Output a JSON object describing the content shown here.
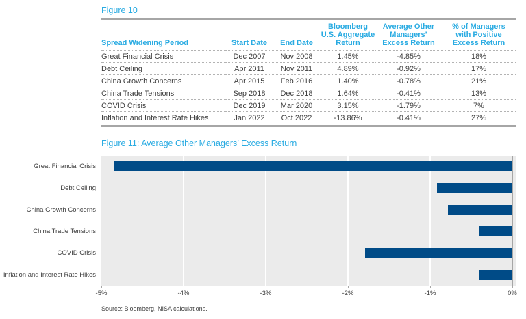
{
  "colors": {
    "accent_cyan": "#29ABE2",
    "bar_navy": "#004B87",
    "plot_background": "#EBEBEB",
    "body_text": "#404040",
    "rule_gray": "#A6A6A6"
  },
  "chart_data": [
    {
      "type": "table",
      "title": "Figure 10",
      "columns": [
        "Spread Widening Period",
        "Start Date",
        "End Date",
        "Bloomberg\nU.S. Aggregate\nReturn",
        "Average Other\nManagers’\nExcess Return",
        "% of Managers\nwith Positive\nExcess Return"
      ],
      "rows": [
        [
          "Great Financial Crisis",
          "Dec 2007",
          "Nov 2008",
          "1.45%",
          "-4.85%",
          "18%"
        ],
        [
          "Debt Ceiling",
          "Apr 2011",
          "Nov 2011",
          "4.89%",
          "-0.92%",
          "17%"
        ],
        [
          "China Growth Concerns",
          "Apr 2015",
          "Feb 2016",
          "1.40%",
          "-0.78%",
          "21%"
        ],
        [
          "China Trade Tensions",
          "Sep 2018",
          "Dec 2018",
          "1.64%",
          "-0.41%",
          "13%"
        ],
        [
          "COVID Crisis",
          "Dec 2019",
          "Mar 2020",
          "3.15%",
          "-1.79%",
          "7%"
        ],
        [
          "Inflation and Interest Rate Hikes",
          "Jan 2022",
          "Oct 2022",
          "-13.86%",
          "-0.41%",
          "27%"
        ]
      ]
    },
    {
      "type": "bar",
      "orientation": "horizontal",
      "title": "Figure 11: Average Other Managers’ Excess Return",
      "categories": [
        "Great Financial Crisis",
        "Debt Ceiling",
        "China Growth Concerns",
        "China Trade Tensions",
        "COVID Crisis",
        "Inflation and Interest Rate Hikes"
      ],
      "values": [
        -4.85,
        -0.92,
        -0.78,
        -0.41,
        -1.79,
        -0.41
      ],
      "xlim": [
        -5,
        0
      ],
      "x_tick_labels": [
        "-5%",
        "-4%",
        "-3%",
        "-2%",
        "-1%",
        "0%"
      ],
      "grid": true,
      "legend": false,
      "bar_color": "#004B87",
      "plot_background": "#EBEBEB",
      "source_note": "Source: Bloomberg, NISA calculations."
    }
  ]
}
